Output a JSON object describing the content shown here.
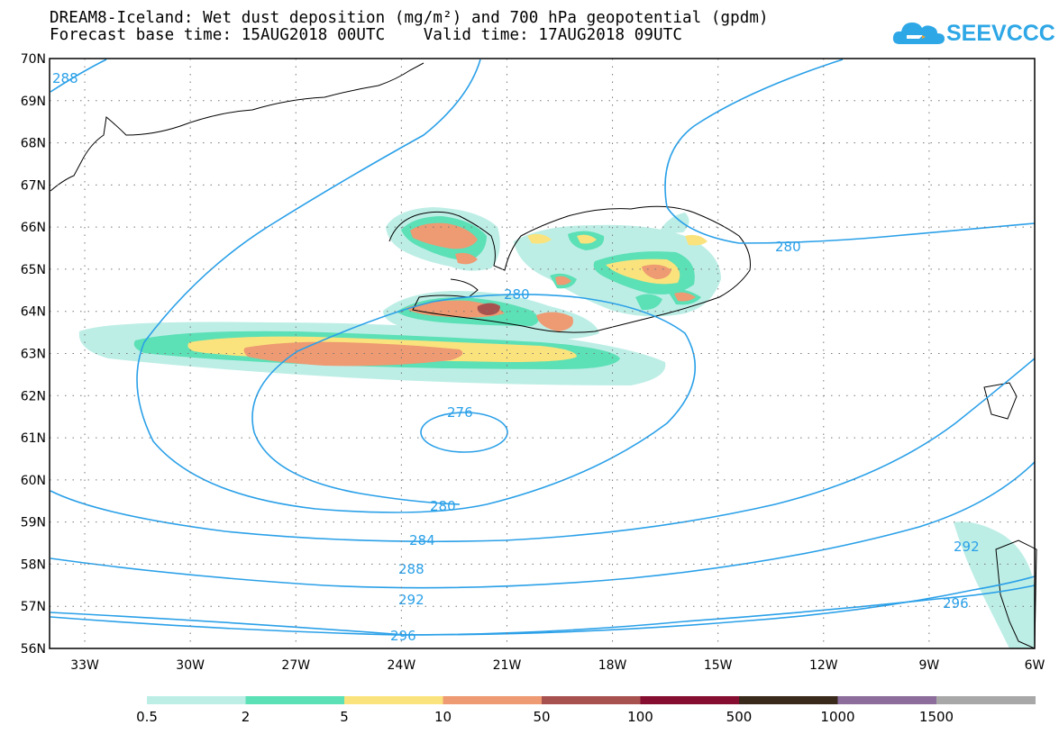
{
  "header": {
    "title_line1": "DREAM8-Iceland: Wet dust deposition (mg/m²) and 700 hPa geopotential (gpdm)",
    "title_line2": "Forecast base time: 15AUG2018 00UTC    Valid time: 17AUG2018 09UTC"
  },
  "logo": {
    "text": "SEEVCCC",
    "icon": "cloud-icon",
    "color": "#2ea7e6"
  },
  "map": {
    "lat_labels": [
      "70N",
      "69N",
      "68N",
      "67N",
      "66N",
      "65N",
      "64N",
      "63N",
      "62N",
      "61N",
      "60N",
      "59N",
      "58N",
      "57N",
      "56N"
    ],
    "lon_labels": [
      "33W",
      "30W",
      "27W",
      "24W",
      "21W",
      "18W",
      "15W",
      "12W",
      "9W",
      "6W"
    ],
    "contour_color": "#2aa0e8",
    "contour_labels": [
      "288",
      "280",
      "280",
      "276",
      "280",
      "284",
      "288",
      "292",
      "296",
      "292",
      "296"
    ]
  },
  "legend": {
    "colors": [
      "#bdeee6",
      "#5ce0b6",
      "#fae37c",
      "#ee9a72",
      "#a85250",
      "#860e30",
      "#3a2a1c",
      "#8c6d9c",
      "#a8a8a8"
    ],
    "labels": [
      "0.5",
      "2",
      "5",
      "10",
      "50",
      "100",
      "500",
      "1000",
      "1500"
    ]
  }
}
